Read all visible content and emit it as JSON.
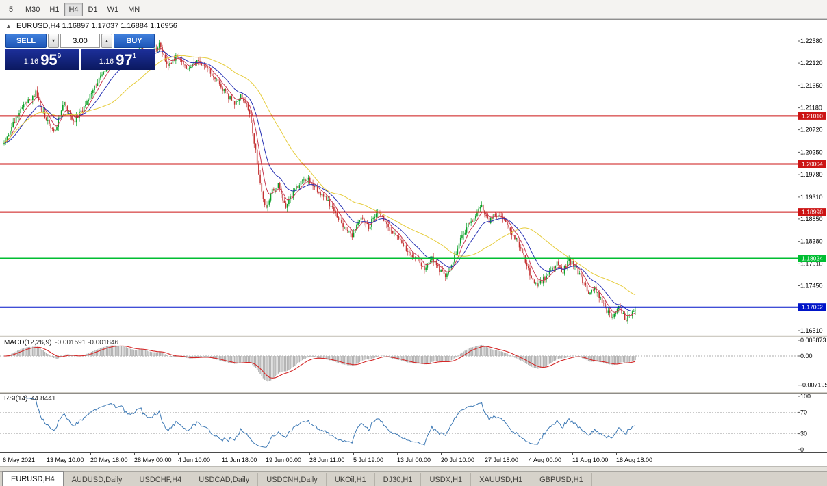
{
  "toolbar": {
    "buttons": [
      {
        "label": "5",
        "active": false
      },
      {
        "label": "M30",
        "active": false
      },
      {
        "label": "H1",
        "active": false
      },
      {
        "label": "H4",
        "active": true
      },
      {
        "label": "D1",
        "active": false
      },
      {
        "label": "W1",
        "active": false
      },
      {
        "label": "MN",
        "active": false
      }
    ]
  },
  "chart": {
    "header_symbol": "EURUSD,H4",
    "header_ohlc": "1.16897 1.17037 1.16884 1.16956"
  },
  "trade_panel": {
    "sell_label": "SELL",
    "buy_label": "BUY",
    "volume": "3.00",
    "bid_major": "1.16",
    "bid_pips": "95",
    "bid_point": "9",
    "ask_major": "1.16",
    "ask_pips": "97",
    "ask_point": "1"
  },
  "chart_data": {
    "type": "candlestick",
    "symbol": "EURUSD",
    "timeframe": "H4",
    "ohlc_current": {
      "open": "1.16897",
      "high": "1.17037",
      "low": "1.16884",
      "close": "1.16956"
    },
    "price_axis_ticks": [
      "1.22580",
      "1.22120",
      "1.21650",
      "1.21180",
      "1.20720",
      "1.20250",
      "1.19780",
      "1.19310",
      "1.18850",
      "1.18380",
      "1.17910",
      "1.17450",
      "1.16980",
      "1.16510"
    ],
    "price_max": 1.23025,
    "price_min": 1.16395,
    "candle_count": 420,
    "seed": 1337,
    "noise": 0.0011,
    "up_color": "#0ca028",
    "down_color": "#c43232",
    "close_waypoints": [
      [
        0,
        1.2042
      ],
      [
        0.02,
        1.21
      ],
      [
        0.035,
        1.2128
      ],
      [
        0.05,
        1.215
      ],
      [
        0.065,
        1.2095
      ],
      [
        0.08,
        1.2068
      ],
      [
        0.095,
        1.2128
      ],
      [
        0.11,
        1.209
      ],
      [
        0.125,
        1.2115
      ],
      [
        0.14,
        1.2155
      ],
      [
        0.155,
        1.2185
      ],
      [
        0.17,
        1.2215
      ],
      [
        0.185,
        1.223
      ],
      [
        0.2,
        1.2215
      ],
      [
        0.215,
        1.2245
      ],
      [
        0.23,
        1.2225
      ],
      [
        0.245,
        1.2252
      ],
      [
        0.26,
        1.2205
      ],
      [
        0.275,
        1.2228
      ],
      [
        0.29,
        1.2198
      ],
      [
        0.305,
        1.2215
      ],
      [
        0.32,
        1.2205
      ],
      [
        0.335,
        1.2178
      ],
      [
        0.35,
        1.215
      ],
      [
        0.365,
        1.2128
      ],
      [
        0.375,
        1.2142
      ],
      [
        0.388,
        1.2115
      ],
      [
        0.398,
        1.203
      ],
      [
        0.408,
        1.1942
      ],
      [
        0.415,
        1.1908
      ],
      [
        0.425,
        1.1945
      ],
      [
        0.435,
        1.1958
      ],
      [
        0.445,
        1.191
      ],
      [
        0.455,
        1.1932
      ],
      [
        0.468,
        1.1962
      ],
      [
        0.48,
        1.1972
      ],
      [
        0.495,
        1.1948
      ],
      [
        0.51,
        1.1928
      ],
      [
        0.525,
        1.1898
      ],
      [
        0.54,
        1.1862
      ],
      [
        0.552,
        1.185
      ],
      [
        0.565,
        1.1888
      ],
      [
        0.578,
        1.1868
      ],
      [
        0.59,
        1.1902
      ],
      [
        0.602,
        1.1882
      ],
      [
        0.615,
        1.1855
      ],
      [
        0.628,
        1.1838
      ],
      [
        0.642,
        1.1815
      ],
      [
        0.655,
        1.1798
      ],
      [
        0.668,
        1.1778
      ],
      [
        0.678,
        1.1802
      ],
      [
        0.69,
        1.1778
      ],
      [
        0.7,
        1.1762
      ],
      [
        0.712,
        1.1798
      ],
      [
        0.724,
        1.1845
      ],
      [
        0.735,
        1.1872
      ],
      [
        0.747,
        1.1892
      ],
      [
        0.757,
        1.1912
      ],
      [
        0.768,
        1.1878
      ],
      [
        0.778,
        1.1895
      ],
      [
        0.79,
        1.1885
      ],
      [
        0.8,
        1.1862
      ],
      [
        0.812,
        1.1842
      ],
      [
        0.824,
        1.1805
      ],
      [
        0.834,
        1.1762
      ],
      [
        0.844,
        1.1745
      ],
      [
        0.855,
        1.1758
      ],
      [
        0.865,
        1.1778
      ],
      [
        0.875,
        1.1792
      ],
      [
        0.885,
        1.1775
      ],
      [
        0.895,
        1.1798
      ],
      [
        0.905,
        1.1785
      ],
      [
        0.915,
        1.1758
      ],
      [
        0.925,
        1.1732
      ],
      [
        0.935,
        1.1742
      ],
      [
        0.945,
        1.1718
      ],
      [
        0.955,
        1.1692
      ],
      [
        0.965,
        1.1678
      ],
      [
        0.975,
        1.1702
      ],
      [
        0.985,
        1.1672
      ],
      [
        0.993,
        1.1688
      ],
      [
        1,
        1.1696
      ]
    ],
    "hlines": [
      {
        "price": 1.2101,
        "label": "1.21010",
        "color": "#cc1414",
        "width": 2
      },
      {
        "price": 1.20004,
        "label": "1.20004",
        "color": "#cc1414",
        "width": 2
      },
      {
        "price": 1.18998,
        "label": "1.18998",
        "color": "#cc1414",
        "width": 2
      },
      {
        "price": 1.18024,
        "label": "1.18024",
        "color": "#00be32",
        "width": 2
      },
      {
        "price": 1.17002,
        "label": "1.17002",
        "color": "#0014c8",
        "width": 2
      }
    ],
    "moving_averages": [
      {
        "name": "fast-red",
        "period": 7,
        "method": "ema",
        "color": "#c83850"
      },
      {
        "name": "mid-blue",
        "period": 18,
        "method": "ema",
        "color": "#2832b4"
      },
      {
        "name": "slow-yellow",
        "period": 48,
        "method": "sma",
        "color": "#e6cc3c"
      }
    ],
    "time_labels": [
      "6 May 2021",
      "13 May 10:00",
      "20 May 18:00",
      "28 May 00:00",
      "4 Jun 10:00",
      "11 Jun 18:00",
      "19 Jun 00:00",
      "28 Jun 11:00",
      "5 Jul 19:00",
      "13 Jul 00:00",
      "20 Jul 10:00",
      "27 Jul 18:00",
      "4 Aug 00:00",
      "11 Aug 10:00",
      "18 Aug 18:00"
    ],
    "macd": {
      "label": "MACD(12,26,9)",
      "values_text": "-0.001591 -0.001846",
      "fast": 12,
      "slow": 26,
      "signal": 9,
      "hist_color": "#b4b4b4",
      "signal_color": "#d42828",
      "axis": [
        {
          "v": 0.003873,
          "label": "0.003873"
        },
        {
          "v": 0,
          "label": "0.00"
        },
        {
          "v": -0.007195,
          "label": "-0.007195"
        }
      ]
    },
    "rsi": {
      "label": "RSI(14)",
      "value_text": "44.8441",
      "period": 14,
      "color": "#3c78b4",
      "levels": [
        {
          "v": 100,
          "label": "100",
          "dashed": false
        },
        {
          "v": 70,
          "label": "70",
          "dashed": true
        },
        {
          "v": 30,
          "label": "30",
          "dashed": true
        },
        {
          "v": 0,
          "label": "0",
          "dashed": false
        }
      ]
    }
  },
  "bottom_tabs": {
    "active": "EURUSD,H4",
    "items": [
      "EURUSD,H4",
      "AUDUSD,Daily",
      "USDCHF,H4",
      "USDCAD,Daily",
      "USDCNH,Daily",
      "UKOil,H1",
      "DJ30,H1",
      "USDX,H1",
      "XAUUSD,H1",
      "GBPUSD,H1"
    ]
  }
}
